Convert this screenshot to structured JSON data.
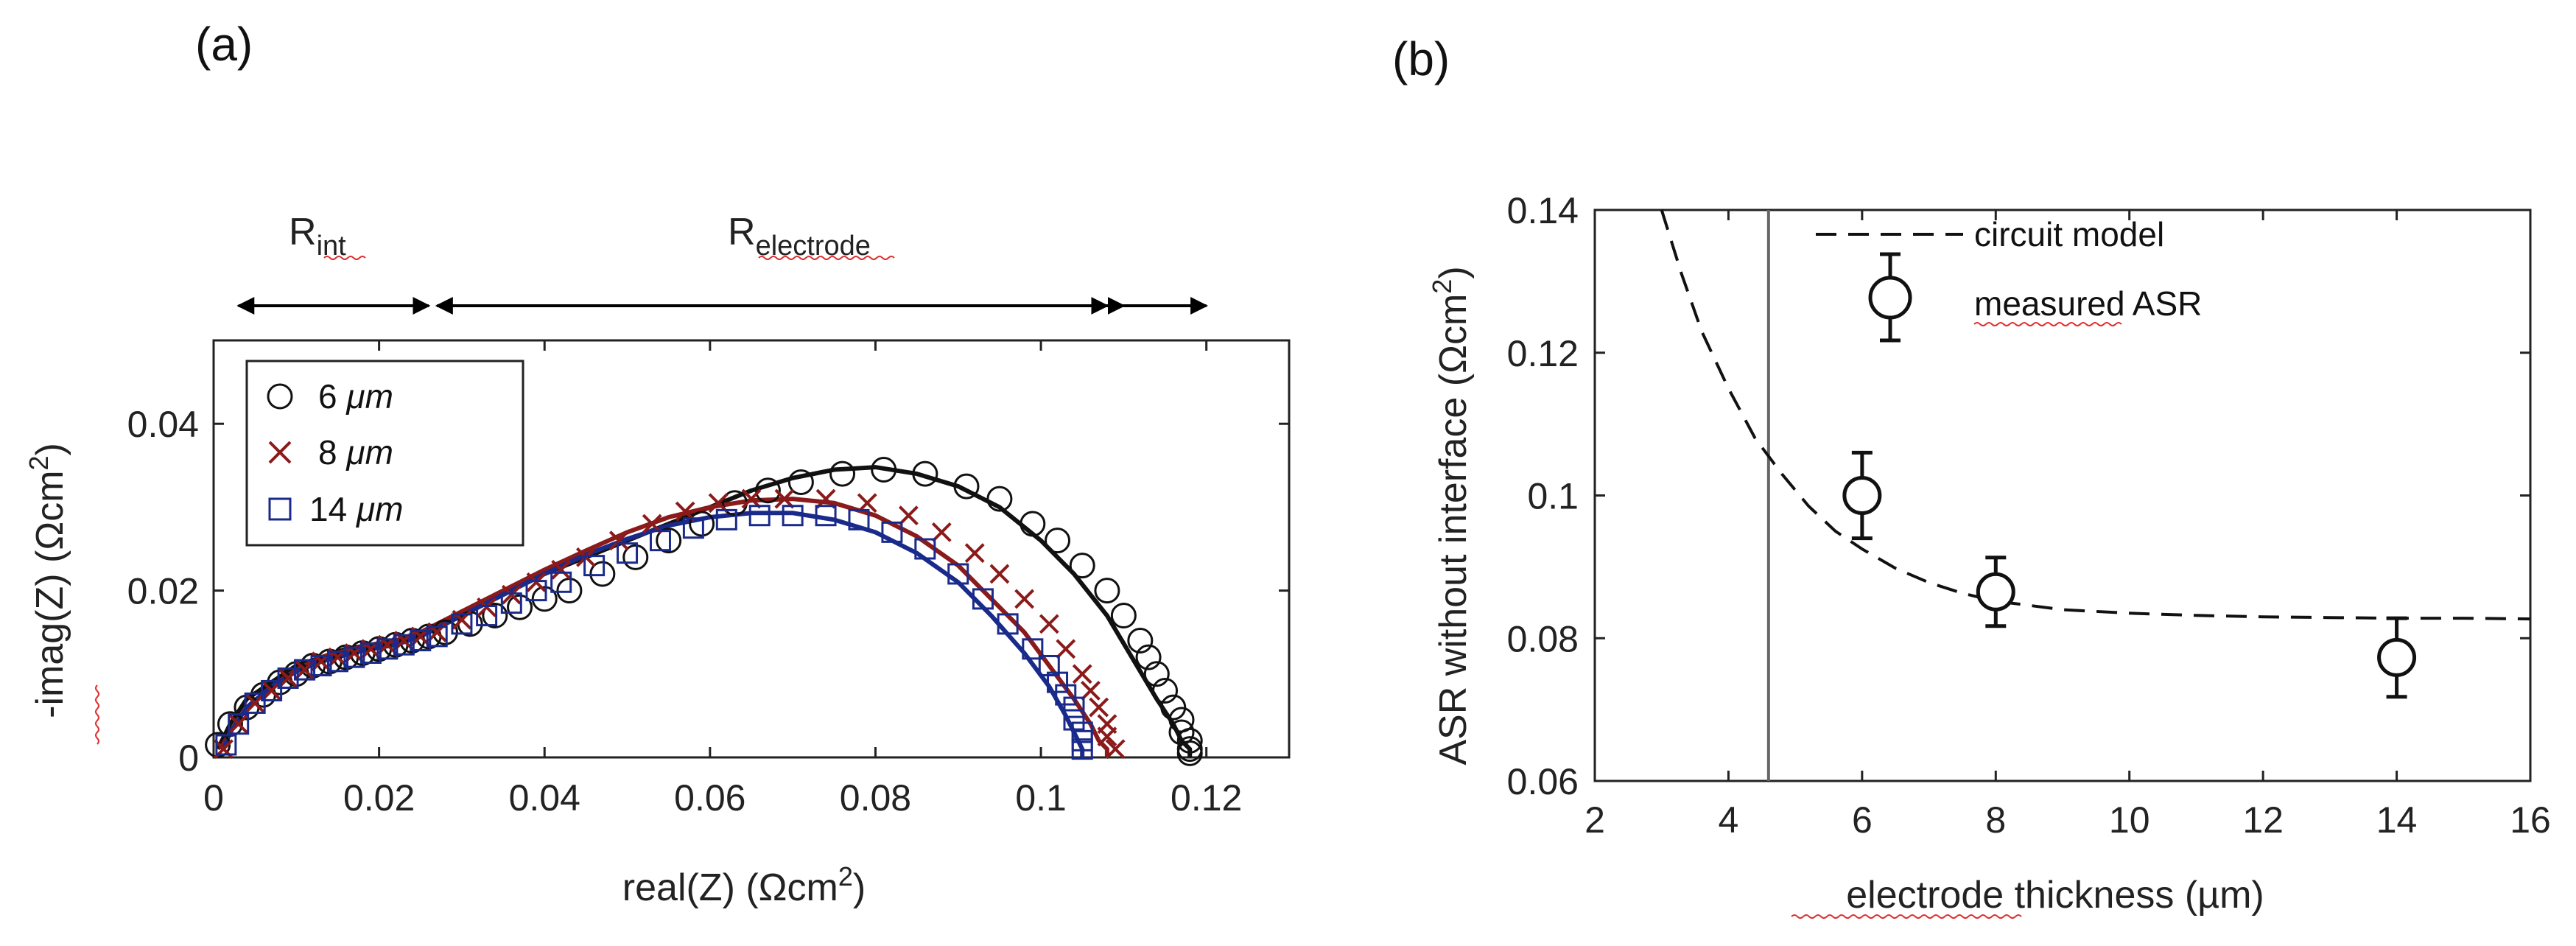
{
  "chart_data": [
    {
      "panel": "(a)",
      "type": "scatter",
      "xlabel_main": "real(Z) (Ωcm",
      "xlabel_sup": "2",
      "xlabel_end": ")",
      "ylabel_main": "-imag(Z) (Ωcm",
      "ylabel_sup": "2",
      "ylabel_end": ")",
      "xlim": [
        0,
        0.13
      ],
      "ylim": [
        0,
        0.05
      ],
      "xticks": [
        0,
        0.02,
        0.04,
        0.06,
        0.08,
        0.1,
        0.12
      ],
      "xtick_labels": [
        "0",
        "0.02",
        "0.04",
        "0.06",
        "0.08",
        "0.1",
        "0.12"
      ],
      "yticks": [
        0,
        0.02,
        0.04
      ],
      "ytick_labels": [
        "0",
        "0.02",
        "0.04"
      ],
      "annotations": {
        "r_int": {
          "main": "R",
          "sub": "int",
          "x_from": 0.003,
          "x_to": 0.026
        },
        "r_electrode": {
          "main": "R",
          "sub": "electrode",
          "x_from": 0.027,
          "x_to": 0.108,
          "x_to_2": 0.11,
          "x_to_3": 0.12
        }
      },
      "series": [
        {
          "name": "6 μm",
          "legend_num": "6 ",
          "legend_unit": "μm",
          "marker": "circle",
          "color": "#111111",
          "fit_x": [
            0.0005,
            0.002,
            0.004,
            0.007,
            0.01,
            0.013,
            0.016,
            0.019,
            0.022,
            0.025,
            0.028,
            0.032,
            0.036,
            0.04,
            0.045,
            0.05,
            0.055,
            0.06,
            0.065,
            0.07,
            0.075,
            0.08,
            0.085,
            0.09,
            0.095,
            0.1,
            0.104,
            0.108,
            0.111,
            0.114,
            0.116,
            0.117,
            0.118,
            0.118
          ],
          "fit_y": [
            0.001,
            0.004,
            0.007,
            0.009,
            0.011,
            0.012,
            0.013,
            0.0135,
            0.014,
            0.015,
            0.016,
            0.018,
            0.02,
            0.022,
            0.024,
            0.026,
            0.028,
            0.03,
            0.032,
            0.0335,
            0.0345,
            0.0348,
            0.034,
            0.0325,
            0.03,
            0.026,
            0.022,
            0.017,
            0.012,
            0.007,
            0.004,
            0.002,
            0.001,
            0.0
          ],
          "points_x": [
            0.0005,
            0.002,
            0.004,
            0.006,
            0.008,
            0.01,
            0.012,
            0.014,
            0.016,
            0.018,
            0.02,
            0.022,
            0.024,
            0.026,
            0.028,
            0.031,
            0.034,
            0.037,
            0.04,
            0.043,
            0.047,
            0.051,
            0.055,
            0.059,
            0.063,
            0.067,
            0.071,
            0.076,
            0.081,
            0.086,
            0.091,
            0.095,
            0.099,
            0.102,
            0.105,
            0.108,
            0.11,
            0.112,
            0.113,
            0.114,
            0.115,
            0.116,
            0.117,
            0.117,
            0.118,
            0.118,
            0.118
          ],
          "points_y": [
            0.0015,
            0.004,
            0.006,
            0.0075,
            0.009,
            0.01,
            0.011,
            0.0115,
            0.012,
            0.0125,
            0.013,
            0.0135,
            0.014,
            0.0145,
            0.015,
            0.016,
            0.017,
            0.018,
            0.019,
            0.02,
            0.022,
            0.024,
            0.026,
            0.028,
            0.0305,
            0.032,
            0.033,
            0.034,
            0.0345,
            0.034,
            0.0325,
            0.031,
            0.028,
            0.026,
            0.023,
            0.02,
            0.017,
            0.014,
            0.012,
            0.01,
            0.008,
            0.006,
            0.0045,
            0.003,
            0.002,
            0.001,
            0.0005
          ]
        },
        {
          "name": "8 μm",
          "legend_num": "8 ",
          "legend_unit": "μm",
          "marker": "x",
          "color": "#8b1a1a",
          "fit_x": [
            0.0008,
            0.002,
            0.004,
            0.007,
            0.01,
            0.013,
            0.016,
            0.019,
            0.022,
            0.025,
            0.028,
            0.032,
            0.036,
            0.04,
            0.045,
            0.05,
            0.055,
            0.06,
            0.065,
            0.07,
            0.075,
            0.08,
            0.085,
            0.09,
            0.094,
            0.098,
            0.101,
            0.104,
            0.106,
            0.107,
            0.108,
            0.108
          ],
          "fit_y": [
            0.001,
            0.003,
            0.006,
            0.0085,
            0.0105,
            0.012,
            0.0128,
            0.0135,
            0.014,
            0.015,
            0.0165,
            0.0185,
            0.0205,
            0.0225,
            0.0248,
            0.027,
            0.0288,
            0.03,
            0.0308,
            0.031,
            0.0305,
            0.029,
            0.0265,
            0.023,
            0.019,
            0.015,
            0.011,
            0.007,
            0.004,
            0.002,
            0.001,
            0.0
          ],
          "points_x": [
            0.0012,
            0.003,
            0.005,
            0.007,
            0.009,
            0.011,
            0.013,
            0.015,
            0.017,
            0.019,
            0.021,
            0.023,
            0.025,
            0.027,
            0.03,
            0.033,
            0.036,
            0.039,
            0.042,
            0.045,
            0.049,
            0.053,
            0.057,
            0.061,
            0.065,
            0.069,
            0.074,
            0.079,
            0.084,
            0.088,
            0.092,
            0.095,
            0.098,
            0.101,
            0.103,
            0.105,
            0.106,
            0.107,
            0.108,
            0.108,
            0.109
          ],
          "points_y": [
            0.001,
            0.004,
            0.0065,
            0.008,
            0.0095,
            0.0105,
            0.0115,
            0.012,
            0.0125,
            0.013,
            0.0135,
            0.014,
            0.0145,
            0.015,
            0.0165,
            0.018,
            0.0195,
            0.021,
            0.0225,
            0.024,
            0.026,
            0.028,
            0.0295,
            0.0305,
            0.031,
            0.031,
            0.031,
            0.0305,
            0.029,
            0.027,
            0.0245,
            0.022,
            0.019,
            0.016,
            0.013,
            0.01,
            0.008,
            0.006,
            0.004,
            0.0025,
            0.001
          ]
        },
        {
          "name": "14 μm",
          "legend_num": "14 ",
          "legend_unit": "μm",
          "marker": "square",
          "color": "#1a2a8b",
          "fit_x": [
            0.0012,
            0.002,
            0.004,
            0.007,
            0.01,
            0.013,
            0.016,
            0.019,
            0.022,
            0.025,
            0.028,
            0.032,
            0.036,
            0.04,
            0.045,
            0.05,
            0.055,
            0.06,
            0.065,
            0.07,
            0.075,
            0.08,
            0.085,
            0.09,
            0.094,
            0.098,
            0.101,
            0.103,
            0.104,
            0.105,
            0.105
          ],
          "fit_y": [
            0.001,
            0.003,
            0.006,
            0.0085,
            0.0103,
            0.0115,
            0.0123,
            0.013,
            0.0135,
            0.0145,
            0.016,
            0.018,
            0.02,
            0.022,
            0.0243,
            0.0262,
            0.0278,
            0.0288,
            0.0293,
            0.0293,
            0.0285,
            0.027,
            0.0245,
            0.021,
            0.017,
            0.0125,
            0.0085,
            0.005,
            0.003,
            0.001,
            0.0
          ],
          "points_x": [
            0.0015,
            0.003,
            0.005,
            0.007,
            0.009,
            0.011,
            0.013,
            0.015,
            0.017,
            0.019,
            0.021,
            0.023,
            0.025,
            0.027,
            0.03,
            0.033,
            0.036,
            0.039,
            0.042,
            0.046,
            0.05,
            0.054,
            0.058,
            0.062,
            0.066,
            0.07,
            0.074,
            0.078,
            0.082,
            0.086,
            0.09,
            0.093,
            0.096,
            0.099,
            0.101,
            0.102,
            0.103,
            0.104,
            0.104,
            0.105,
            0.105,
            0.105
          ],
          "points_y": [
            0.0015,
            0.004,
            0.0065,
            0.008,
            0.0095,
            0.0105,
            0.011,
            0.0115,
            0.012,
            0.0125,
            0.013,
            0.0135,
            0.014,
            0.0145,
            0.016,
            0.017,
            0.0185,
            0.02,
            0.021,
            0.023,
            0.0245,
            0.026,
            0.0275,
            0.0285,
            0.029,
            0.029,
            0.029,
            0.0285,
            0.027,
            0.025,
            0.022,
            0.019,
            0.016,
            0.013,
            0.011,
            0.009,
            0.0075,
            0.006,
            0.0045,
            0.003,
            0.002,
            0.001
          ]
        }
      ]
    },
    {
      "panel": "(b)",
      "type": "scatter",
      "xlabel_main": "electrode thickness (µm)",
      "ylabel_main": "ASR without interface (Ωcm",
      "ylabel_sup": "2",
      "ylabel_end": ")",
      "xlim": [
        2,
        16
      ],
      "ylim": [
        0.06,
        0.14
      ],
      "xticks": [
        2,
        4,
        6,
        8,
        10,
        12,
        14,
        16
      ],
      "xtick_labels": [
        "2",
        "4",
        "6",
        "8",
        "10",
        "12",
        "14",
        "16"
      ],
      "yticks": [
        0.06,
        0.08,
        0.1,
        0.12,
        0.14
      ],
      "ytick_labels": [
        "0.06",
        "0.08",
        "0.1",
        "0.12",
        "0.14"
      ],
      "vertical_line_x": 4.6,
      "model": {
        "name": "circuit model",
        "x": [
          3.0,
          3.3,
          3.6,
          4.0,
          4.4,
          4.8,
          5.2,
          5.6,
          6.0,
          6.5,
          7.0,
          7.5,
          8.0,
          9.0,
          10.0,
          11.0,
          12.0,
          13.0,
          14.0,
          15.0,
          16.0
        ],
        "y": [
          0.14,
          0.131,
          0.123,
          0.115,
          0.108,
          0.103,
          0.0985,
          0.095,
          0.0925,
          0.0898,
          0.0878,
          0.0863,
          0.0852,
          0.084,
          0.0835,
          0.0832,
          0.083,
          0.0829,
          0.0828,
          0.0828,
          0.0827
        ]
      },
      "measured": {
        "name": "measured ASR",
        "x": [
          6,
          8,
          14
        ],
        "y": [
          0.1,
          0.0865,
          0.0773
        ],
        "err": [
          0.006,
          0.0048,
          0.0055
        ]
      }
    }
  ]
}
